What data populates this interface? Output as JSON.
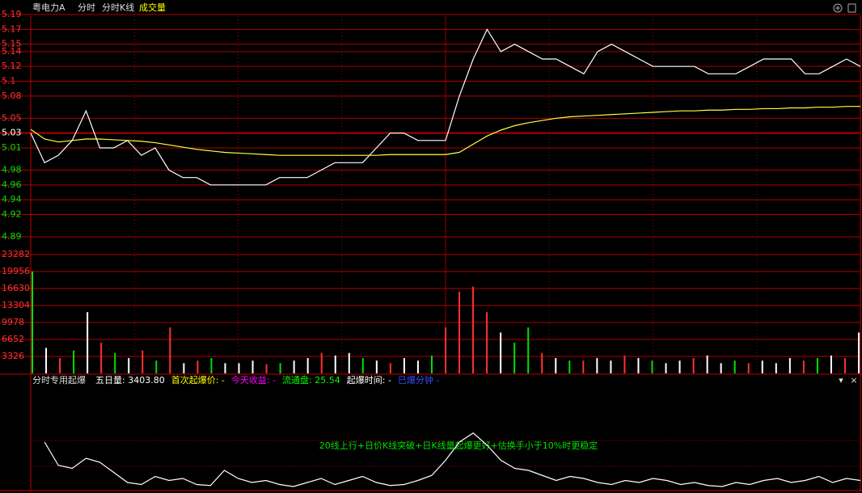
{
  "header": {
    "stock": "粤电力A",
    "tabs": [
      "分时",
      "分时K线",
      "成交量"
    ]
  },
  "indicator_bar": {
    "name": "分时专用起爆",
    "items": [
      {
        "text": "五日量: 3403.80",
        "color": "#ffffff"
      },
      {
        "text": "首次起爆价: -",
        "color": "#ffff00"
      },
      {
        "text": "今天收益: -",
        "color": "#ff00ff"
      },
      {
        "text": "流通盘: 25.54",
        "color": "#00ff00"
      },
      {
        "text": "起爆时间: -",
        "color": "#ffffff"
      },
      {
        "text": "已爆分钟 -",
        "color": "#3050ff"
      }
    ],
    "annotation": "20线上行+日价K线突破+日K线量起爆更好+估换手小于10%时更稳定"
  },
  "chart_data": [
    {
      "type": "line",
      "ylim": [
        4.89,
        5.19
      ],
      "yticks": [
        5.19,
        5.17,
        5.15,
        5.14,
        5.12,
        5.1,
        5.08,
        5.05,
        5.03,
        5.01,
        4.98,
        4.96,
        4.94,
        4.92,
        4.89
      ],
      "ytick_colors": [
        "#ff3232",
        "#ff3232",
        "#ff3232",
        "#ff3232",
        "#ff3232",
        "#ff3232",
        "#ff3232",
        "#ff3232",
        "#ffffff",
        "#00e000",
        "#00e000",
        "#00e000",
        "#00e000",
        "#00e000",
        "#00e000"
      ],
      "series": [
        {
          "color": "#ffffff",
          "values": [
            5.03,
            4.99,
            5.0,
            5.02,
            5.06,
            5.01,
            5.01,
            5.02,
            5.0,
            5.01,
            4.98,
            4.97,
            4.97,
            4.96,
            4.96,
            4.96,
            4.96,
            4.96,
            4.97,
            4.97,
            4.97,
            4.98,
            4.99,
            4.99,
            4.99,
            5.01,
            5.03,
            5.03,
            5.02,
            5.02,
            5.02,
            5.08,
            5.13,
            5.17,
            5.14,
            5.15,
            5.14,
            5.13,
            5.13,
            5.12,
            5.11,
            5.14,
            5.15,
            5.14,
            5.13,
            5.12,
            5.12,
            5.12,
            5.12,
            5.11,
            5.11,
            5.11,
            5.12,
            5.13,
            5.13,
            5.13,
            5.11,
            5.11,
            5.12,
            5.13,
            5.12
          ]
        },
        {
          "color": "#ffff40",
          "values": [
            5.035,
            5.022,
            5.018,
            5.02,
            5.022,
            5.022,
            5.021,
            5.02,
            5.019,
            5.017,
            5.014,
            5.011,
            5.008,
            5.006,
            5.004,
            5.003,
            5.002,
            5.001,
            5.0,
            5.0,
            5.0,
            5.0,
            5.0,
            5.0,
            5.0,
            5.0,
            5.001,
            5.001,
            5.001,
            5.001,
            5.001,
            5.004,
            5.015,
            5.026,
            5.034,
            5.04,
            5.044,
            5.047,
            5.05,
            5.052,
            5.053,
            5.054,
            5.055,
            5.056,
            5.057,
            5.058,
            5.059,
            5.06,
            5.06,
            5.061,
            5.061,
            5.062,
            5.062,
            5.063,
            5.063,
            5.064,
            5.064,
            5.065,
            5.065,
            5.066,
            5.066
          ]
        }
      ]
    },
    {
      "type": "bar",
      "ylim": [
        0,
        23282
      ],
      "yticks": [
        23282,
        19956,
        16630,
        13304,
        9978,
        6652,
        3326
      ],
      "values": [
        20000,
        5000,
        3000,
        4500,
        12000,
        6000,
        4000,
        3000,
        4500,
        2500,
        9000,
        2000,
        2500,
        3000,
        2000,
        2000,
        2500,
        1800,
        2000,
        2500,
        3000,
        4000,
        3500,
        4000,
        3000,
        2500,
        2000,
        3000,
        2500,
        3500,
        9000,
        16000,
        17000,
        12000,
        8000,
        6000,
        9000,
        4000,
        3000,
        2500,
        2500,
        3000,
        2500,
        3500,
        3000,
        2500,
        2000,
        2500,
        3000,
        3500,
        2000,
        2500,
        2000,
        2500,
        2000,
        3000,
        2500,
        3000,
        3500,
        3000,
        8000
      ],
      "colors": [
        "#00e000",
        "#ffffff",
        "#ff3232",
        "#00e000",
        "#ffffff",
        "#ff3232",
        "#00e000",
        "#ffffff",
        "#ff3232",
        "#00e000",
        "#ff3232",
        "#ffffff",
        "#ff3232",
        "#00e000",
        "#ffffff",
        "#ffffff",
        "#ffffff",
        "#ff3232",
        "#00e000",
        "#ffffff",
        "#ffffff",
        "#ff3232",
        "#ffffff",
        "#ffffff",
        "#00e000",
        "#ffffff",
        "#ff3232",
        "#ffffff",
        "#ffffff",
        "#00e000",
        "#ff3232",
        "#ff3232",
        "#ff3232",
        "#ff3232",
        "#ffffff",
        "#00e000",
        "#00e000",
        "#ff3232",
        "#ffffff",
        "#00e000",
        "#ff3232",
        "#ffffff",
        "#ffffff",
        "#ff3232",
        "#ffffff",
        "#00e000",
        "#ffffff",
        "#ffffff",
        "#ff3232",
        "#ffffff",
        "#ffffff",
        "#00e000",
        "#ff3232",
        "#ffffff",
        "#ffffff",
        "#ffffff",
        "#ff3232",
        "#00e000",
        "#ffffff",
        "#ff3232",
        "#ffffff"
      ]
    },
    {
      "type": "line",
      "ylim": [
        0,
        100
      ],
      "series": [
        {
          "color": "#ffffff",
          "values": [
            null,
            48,
            25,
            22,
            32,
            28,
            18,
            8,
            6,
            14,
            10,
            12,
            6,
            5,
            20,
            12,
            8,
            10,
            6,
            4,
            8,
            12,
            6,
            10,
            14,
            8,
            5,
            6,
            10,
            15,
            30,
            48,
            57,
            45,
            30,
            22,
            20,
            15,
            10,
            14,
            12,
            8,
            6,
            10,
            8,
            12,
            10,
            6,
            8,
            5,
            4,
            8,
            6,
            10,
            12,
            8,
            10,
            14,
            8,
            12,
            10
          ]
        }
      ]
    }
  ]
}
